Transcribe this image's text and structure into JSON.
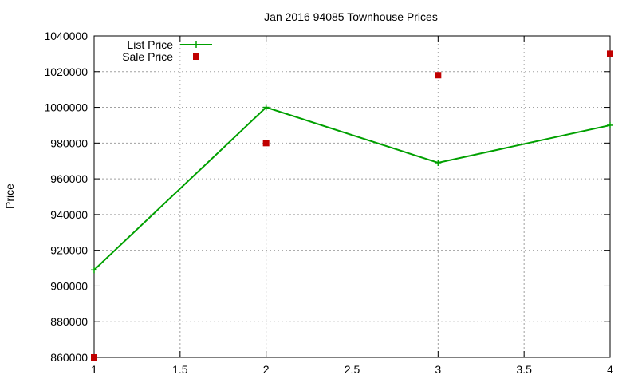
{
  "chart_data": {
    "type": "line",
    "title": "Jan 2016 94085 Townhouse Prices",
    "xlabel": "",
    "ylabel": "Price",
    "xlim": [
      1,
      4
    ],
    "ylim": [
      860000,
      1040000
    ],
    "xticks": [
      1,
      1.5,
      2,
      2.5,
      3,
      3.5,
      4
    ],
    "xtick_labels": [
      "1",
      "1.5",
      "2",
      "2.5",
      "3",
      "3.5",
      "4"
    ],
    "yticks": [
      860000,
      880000,
      900000,
      920000,
      940000,
      960000,
      980000,
      1000000,
      1020000,
      1040000
    ],
    "ytick_labels": [
      "860000",
      "880000",
      "900000",
      "920000",
      "940000",
      "960000",
      "980000",
      "1000000",
      "1020000",
      "1040000"
    ],
    "grid": true,
    "legend_position": "top-left",
    "series": [
      {
        "name": "List Price",
        "style": "linespoints",
        "marker": "plus",
        "color": "#00a000",
        "x": [
          1,
          2,
          3,
          4
        ],
        "y": [
          909000,
          1000000,
          969000,
          990000
        ]
      },
      {
        "name": "Sale Price",
        "style": "points",
        "marker": "square",
        "color": "#c00000",
        "x": [
          1,
          2,
          3,
          4
        ],
        "y": [
          860000,
          980000,
          1018000,
          1030000
        ]
      }
    ]
  }
}
